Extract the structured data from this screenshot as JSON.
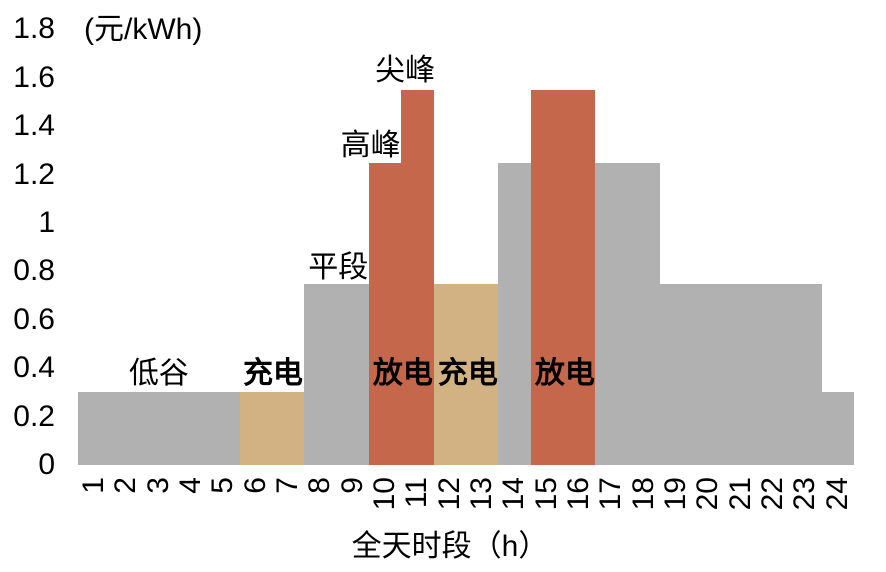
{
  "chart_data": {
    "type": "bar",
    "title": "",
    "unit_label": "(元/kWh)",
    "xlabel": "全天时段（h）",
    "ylabel": "",
    "ylim": [
      0,
      1.8
    ],
    "grid": false,
    "legend": "none",
    "yticks": [
      "1.8",
      "1.6",
      "1.4",
      "1.2",
      "1",
      "0.8",
      "0.6",
      "0.4",
      "0.2",
      "0"
    ],
    "xticks": [
      "1",
      "2",
      "3",
      "4",
      "5",
      "6",
      "7",
      "8",
      "9",
      "10",
      "11",
      "12",
      "13",
      "14",
      "15",
      "16",
      "17",
      "18",
      "19",
      "20",
      "21",
      "22",
      "23",
      "24"
    ],
    "price_levels": {
      "低谷": 0.3,
      "平段": 0.75,
      "高峰": 1.25,
      "尖峰": 1.55
    },
    "segments": [
      {
        "hours": [
          1,
          5
        ],
        "price": 0.3,
        "color": "gray"
      },
      {
        "hours": [
          6,
          7
        ],
        "price": 0.3,
        "color": "tan"
      },
      {
        "hours": [
          8,
          9
        ],
        "price": 0.75,
        "color": "gray"
      },
      {
        "hours": [
          10,
          10
        ],
        "price": 1.25,
        "color": "red"
      },
      {
        "hours": [
          11,
          11
        ],
        "price": 1.55,
        "color": "red"
      },
      {
        "hours": [
          12,
          13
        ],
        "price": 0.75,
        "color": "tan"
      },
      {
        "hours": [
          14,
          14
        ],
        "price": 1.25,
        "color": "gray"
      },
      {
        "hours": [
          15,
          16
        ],
        "price": 1.55,
        "color": "red"
      },
      {
        "hours": [
          17,
          18
        ],
        "price": 1.25,
        "color": "gray"
      },
      {
        "hours": [
          19,
          23
        ],
        "price": 0.75,
        "color": "gray"
      },
      {
        "hours": [
          24,
          24
        ],
        "price": 0.3,
        "color": "gray"
      }
    ],
    "annotations": [
      {
        "text": "低谷",
        "x": 2.5,
        "y": 0.375,
        "bold": false
      },
      {
        "text": "充电",
        "x": 6.03,
        "y": 0.375,
        "bold": true
      },
      {
        "text": "放电",
        "x": 10.05,
        "y": 0.375,
        "bold": true
      },
      {
        "text": "充电",
        "x": 12.06,
        "y": 0.375,
        "bold": true
      },
      {
        "text": "放电",
        "x": 15.06,
        "y": 0.375,
        "bold": true
      },
      {
        "text": "平段",
        "x": 8.05,
        "y": 0.815,
        "bold": false
      },
      {
        "text": "高峰",
        "x": 9.05,
        "y": 1.32,
        "bold": false
      },
      {
        "text": "尖峰",
        "x": 10.12,
        "y": 1.63,
        "bold": false
      }
    ],
    "colors": {
      "gray": "#B1B1B1",
      "tan": "#D2B283",
      "red": "#C5674B"
    }
  }
}
